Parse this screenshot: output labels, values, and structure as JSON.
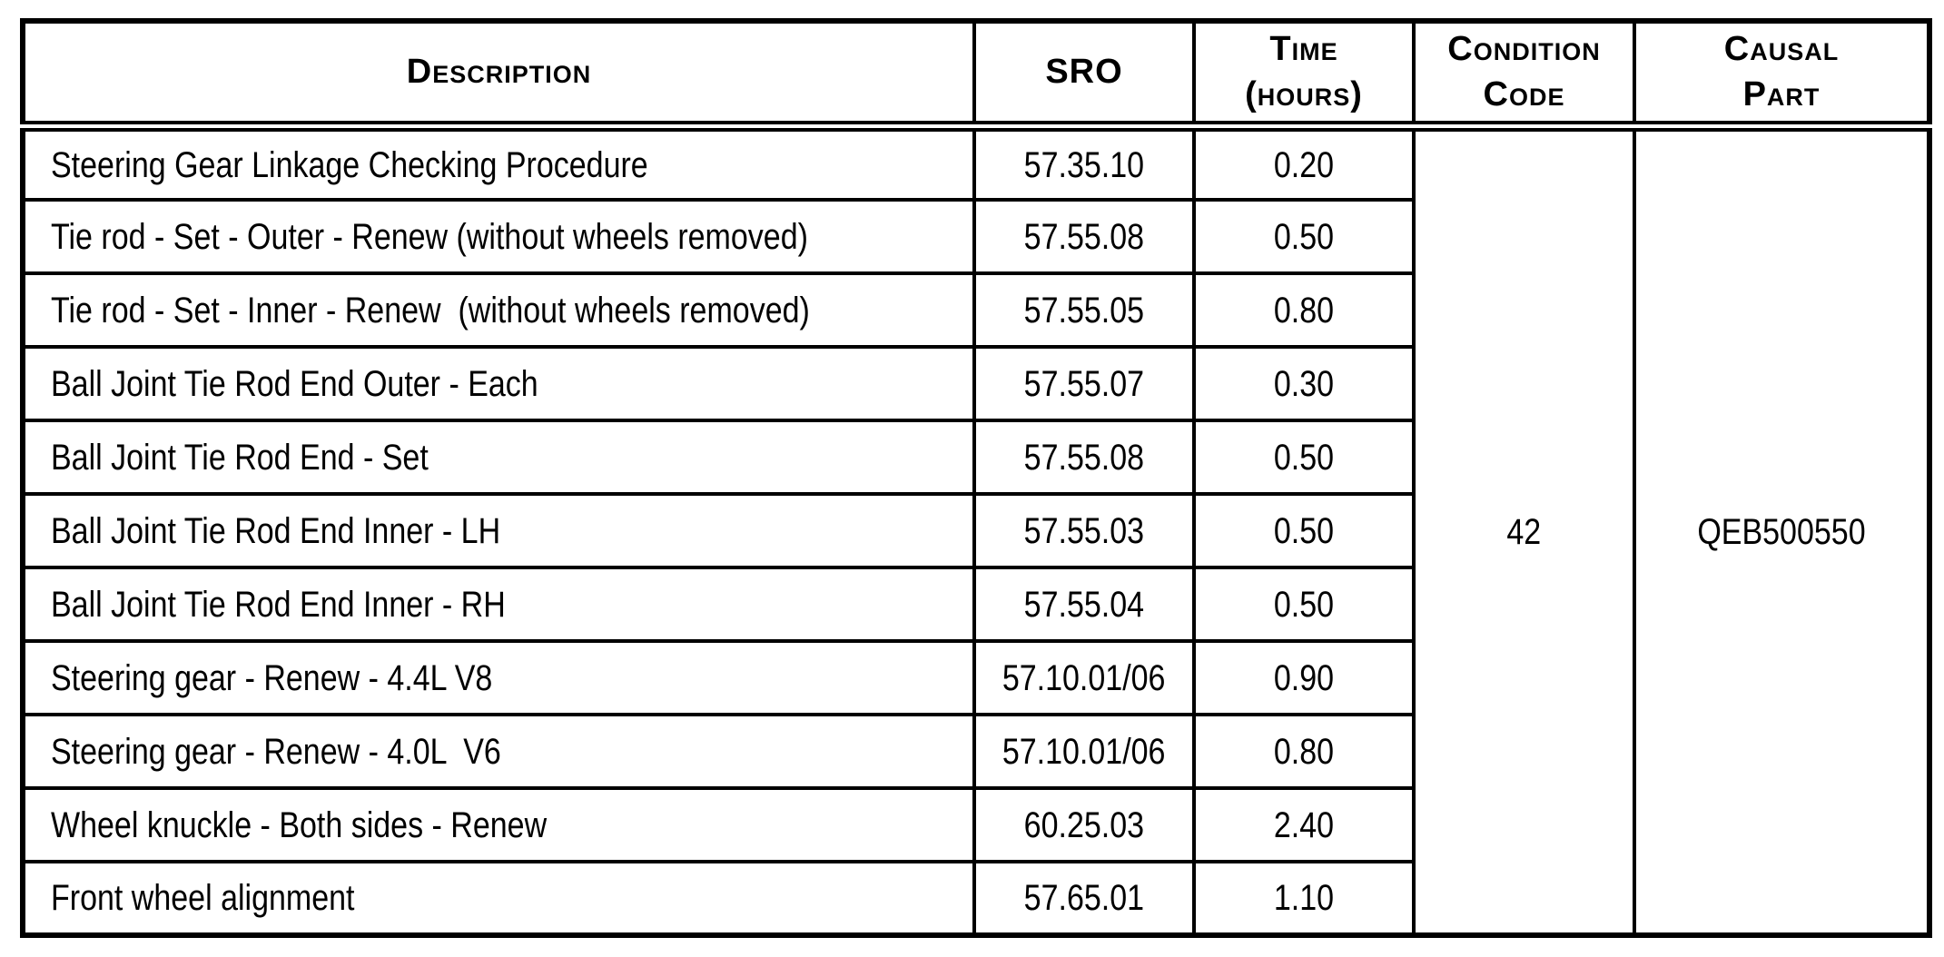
{
  "table": {
    "columns": {
      "description": {
        "label": "Description"
      },
      "sro": {
        "label": "SRO"
      },
      "time": {
        "line1": "Time",
        "line2": "(hours)"
      },
      "condition": {
        "line1": "Condition",
        "line2": "Code"
      },
      "causal": {
        "line1": "Causal",
        "line2": "Part"
      }
    },
    "rows": [
      {
        "description": "Steering Gear Linkage Checking Procedure",
        "sro": "57.35.10",
        "time": "0.20"
      },
      {
        "description": "Tie rod - Set - Outer - Renew (without wheels removed)",
        "sro": "57.55.08",
        "time": "0.50"
      },
      {
        "description": "Tie rod - Set - Inner - Renew  (without wheels removed)",
        "sro": "57.55.05",
        "time": "0.80"
      },
      {
        "description": "Ball Joint Tie Rod End Outer - Each",
        "sro": "57.55.07",
        "time": "0.30"
      },
      {
        "description": "Ball Joint Tie Rod End - Set",
        "sro": "57.55.08",
        "time": "0.50"
      },
      {
        "description": "Ball Joint Tie Rod End Inner - LH",
        "sro": "57.55.03",
        "time": "0.50"
      },
      {
        "description": "Ball Joint Tie Rod End Inner - RH",
        "sro": "57.55.04",
        "time": "0.50"
      },
      {
        "description": "Steering gear - Renew - 4.4L V8",
        "sro": "57.10.01/06",
        "time": "0.90"
      },
      {
        "description": "Steering gear - Renew - 4.0L  V6",
        "sro": "57.10.01/06",
        "time": "0.80"
      },
      {
        "description": "Wheel knuckle - Both sides - Renew",
        "sro": "60.25.03",
        "time": "2.40"
      },
      {
        "description": "Front wheel alignment",
        "sro": "57.65.01",
        "time": "1.10"
      }
    ],
    "condition_code": "42",
    "causal_part": "QEB500550"
  },
  "colors": {
    "border": "#000000",
    "text": "#000000",
    "background": "#ffffff"
  }
}
